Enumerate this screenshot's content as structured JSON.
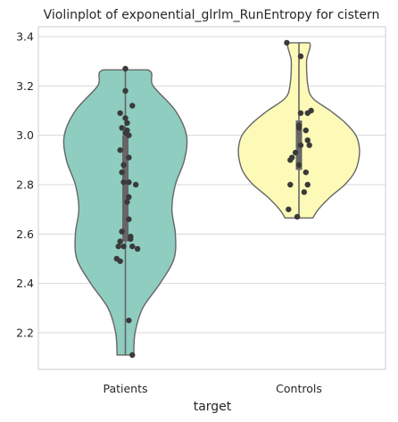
{
  "chart_data": {
    "type": "violin",
    "title": "Violinplot of exponential_glrlm_RunEntropy for cistern",
    "xlabel": "target",
    "ylabel": "",
    "categories": [
      "Patients",
      "Controls"
    ],
    "ylim": [
      2.05,
      3.42
    ],
    "yticks": [
      2.2,
      2.4,
      2.6,
      2.8,
      3.0,
      3.2,
      3.4
    ],
    "ytick_labels": [
      "2.2",
      "2.4",
      "2.6",
      "2.8",
      "3.0",
      "3.2",
      "3.4"
    ],
    "grid": "horizontal",
    "colors": {
      "Patients": "#8ecdc0",
      "Controls": "#fdfab8",
      "points": "#3a3a3a",
      "outline": "#666666",
      "grid": "#d9d9d9",
      "box": "#666666"
    },
    "series": [
      {
        "name": "Patients",
        "range": [
          2.11,
          3.265
        ],
        "quartiles": [
          2.57,
          2.82,
          3.0
        ],
        "violin_profile": [
          {
            "y": 2.11,
            "w": 0.12
          },
          {
            "y": 2.2,
            "w": 0.14
          },
          {
            "y": 2.3,
            "w": 0.25
          },
          {
            "y": 2.4,
            "w": 0.5
          },
          {
            "y": 2.5,
            "w": 0.7
          },
          {
            "y": 2.6,
            "w": 0.72
          },
          {
            "y": 2.7,
            "w": 0.67
          },
          {
            "y": 2.8,
            "w": 0.72
          },
          {
            "y": 2.9,
            "w": 0.85
          },
          {
            "y": 3.0,
            "w": 0.88
          },
          {
            "y": 3.1,
            "w": 0.72
          },
          {
            "y": 3.2,
            "w": 0.4
          },
          {
            "y": 3.265,
            "w": 0.32
          }
        ],
        "points": [
          {
            "x": 0.0,
            "y": 3.27
          },
          {
            "x": 0.0,
            "y": 3.18
          },
          {
            "x": 0.04,
            "y": 3.12
          },
          {
            "x": -0.03,
            "y": 3.09
          },
          {
            "x": 0.0,
            "y": 3.07
          },
          {
            "x": 0.01,
            "y": 3.05
          },
          {
            "x": -0.02,
            "y": 3.03
          },
          {
            "x": 0.01,
            "y": 3.02
          },
          {
            "x": 0.0,
            "y": 3.01
          },
          {
            "x": 0.02,
            "y": 3.0
          },
          {
            "x": -0.03,
            "y": 2.94
          },
          {
            "x": 0.02,
            "y": 2.91
          },
          {
            "x": -0.01,
            "y": 2.88
          },
          {
            "x": -0.02,
            "y": 2.85
          },
          {
            "x": -0.01,
            "y": 2.81
          },
          {
            "x": 0.02,
            "y": 2.81
          },
          {
            "x": 0.06,
            "y": 2.8
          },
          {
            "x": 0.02,
            "y": 2.75
          },
          {
            "x": 0.01,
            "y": 2.73
          },
          {
            "x": 0.02,
            "y": 2.66
          },
          {
            "x": -0.02,
            "y": 2.61
          },
          {
            "x": 0.03,
            "y": 2.59
          },
          {
            "x": 0.03,
            "y": 2.58
          },
          {
            "x": -0.03,
            "y": 2.57
          },
          {
            "x": -0.04,
            "y": 2.55
          },
          {
            "x": -0.01,
            "y": 2.55
          },
          {
            "x": 0.04,
            "y": 2.55
          },
          {
            "x": 0.07,
            "y": 2.54
          },
          {
            "x": -0.03,
            "y": 2.49
          },
          {
            "x": -0.05,
            "y": 2.5
          },
          {
            "x": 0.02,
            "y": 2.25
          },
          {
            "x": 0.04,
            "y": 2.11
          }
        ]
      },
      {
        "name": "Controls",
        "range": [
          2.665,
          3.375
        ],
        "quartiles": [
          2.86,
          2.95,
          3.06
        ],
        "violin_profile": [
          {
            "y": 2.665,
            "w": 0.2
          },
          {
            "y": 2.7,
            "w": 0.28
          },
          {
            "y": 2.75,
            "w": 0.45
          },
          {
            "y": 2.8,
            "w": 0.66
          },
          {
            "y": 2.85,
            "w": 0.8
          },
          {
            "y": 2.9,
            "w": 0.86
          },
          {
            "y": 2.95,
            "w": 0.87
          },
          {
            "y": 3.0,
            "w": 0.82
          },
          {
            "y": 3.05,
            "w": 0.67
          },
          {
            "y": 3.1,
            "w": 0.45
          },
          {
            "y": 3.15,
            "w": 0.2
          },
          {
            "y": 3.2,
            "w": 0.13
          },
          {
            "y": 3.3,
            "w": 0.11
          },
          {
            "y": 3.375,
            "w": 0.15
          }
        ],
        "points": [
          {
            "x": -0.07,
            "y": 3.375
          },
          {
            "x": 0.01,
            "y": 3.32
          },
          {
            "x": 0.07,
            "y": 3.1
          },
          {
            "x": 0.05,
            "y": 3.09
          },
          {
            "x": 0.01,
            "y": 3.09
          },
          {
            "x": 0.0,
            "y": 3.04
          },
          {
            "x": 0.0,
            "y": 3.03
          },
          {
            "x": 0.04,
            "y": 3.02
          },
          {
            "x": 0.05,
            "y": 2.98
          },
          {
            "x": 0.06,
            "y": 2.96
          },
          {
            "x": 0.01,
            "y": 2.96
          },
          {
            "x": -0.02,
            "y": 2.93
          },
          {
            "x": -0.04,
            "y": 2.91
          },
          {
            "x": -0.05,
            "y": 2.9
          },
          {
            "x": 0.0,
            "y": 2.88
          },
          {
            "x": 0.04,
            "y": 2.85
          },
          {
            "x": -0.05,
            "y": 2.8
          },
          {
            "x": 0.05,
            "y": 2.8
          },
          {
            "x": 0.03,
            "y": 2.77
          },
          {
            "x": -0.06,
            "y": 2.7
          },
          {
            "x": -0.01,
            "y": 2.67
          }
        ]
      }
    ]
  }
}
